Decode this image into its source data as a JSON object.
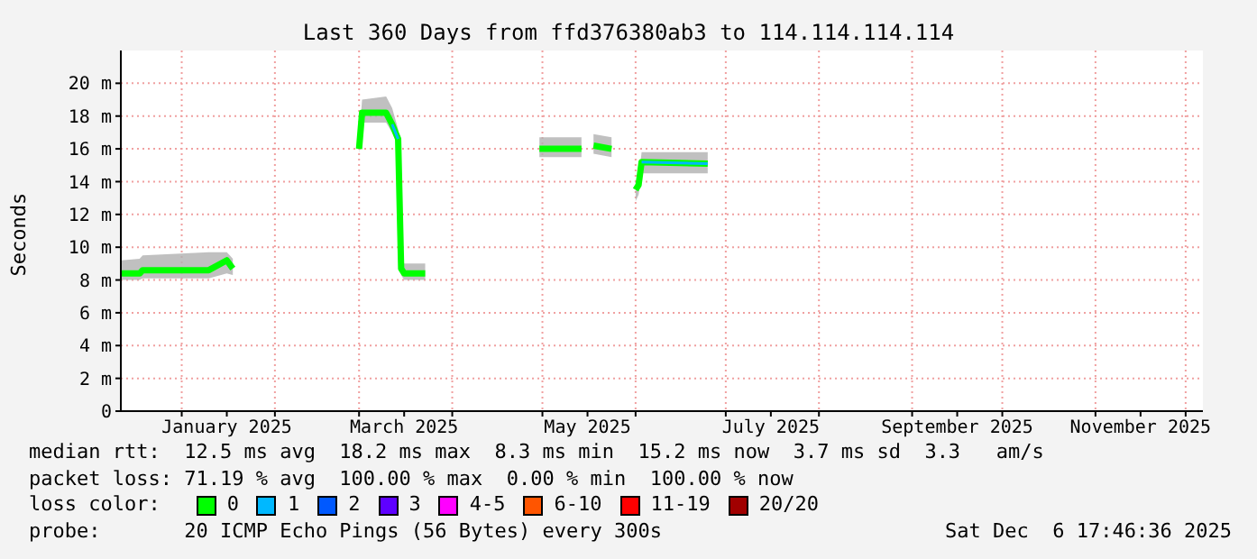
{
  "chart_data": {
    "type": "line",
    "title": "Last 360 Days from ffd376380ab3 to 114.114.114.114",
    "ylabel": "Seconds",
    "x": [
      "2024-12-12",
      "2024-12-18",
      "2024-12-19",
      "2025-01-10",
      "2025-01-16",
      "2025-01-18",
      "2025-02-05",
      "2025-03-01",
      "2025-03-02",
      "2025-03-10",
      "2025-03-12",
      "2025-03-14",
      "2025-03-15",
      "2025-03-16",
      "2025-03-23",
      "2025-04-10",
      "2025-04-30",
      "2025-05-14",
      "2025-05-16",
      "2025-05-18",
      "2025-05-24",
      "2025-05-28",
      "2025-06-01",
      "2025-06-02",
      "2025-06-03",
      "2025-06-25"
    ],
    "series": [
      {
        "name": "0",
        "color": "#00ff00",
        "values": [
          8.4,
          8.4,
          8.6,
          8.6,
          9.2,
          8.7,
          null,
          16,
          18.2,
          18.2,
          17.5,
          16.6,
          8.7,
          8.4,
          8.4,
          null,
          16,
          16,
          null,
          16.2,
          16,
          null,
          13.5,
          13.8,
          15.2,
          15.1
        ],
        "lower": [
          8,
          8,
          8.1,
          8.1,
          8.4,
          8.3,
          null,
          15.7,
          17.6,
          17.6,
          17,
          16.2,
          8.3,
          8,
          8,
          null,
          15.5,
          15.5,
          null,
          15.7,
          15.5,
          null,
          12.8,
          13.2,
          14.5,
          14.5
        ],
        "upper": [
          9.2,
          9.3,
          9.5,
          9.7,
          9.7,
          9.3,
          null,
          16.5,
          19,
          19.2,
          18.5,
          17.2,
          9.3,
          9,
          9,
          null,
          16.7,
          16.7,
          null,
          16.9,
          16.7,
          null,
          14,
          14.2,
          15.8,
          15.8
        ]
      },
      {
        "name": "1",
        "color": "#00b8ff",
        "values": [
          null,
          null,
          null,
          null,
          null,
          null,
          null,
          null,
          null,
          null,
          17.5,
          16.6,
          null,
          null,
          null,
          null,
          null,
          null,
          null,
          null,
          null,
          null,
          null,
          null,
          15.2,
          15.1
        ]
      },
      {
        "name": "2",
        "color": "#0059ff",
        "values": [
          null,
          null,
          null,
          null,
          null,
          null,
          null,
          null,
          null,
          null,
          null,
          null,
          null,
          null,
          null,
          null,
          null,
          null,
          null,
          null,
          null,
          null,
          null,
          null,
          null,
          null
        ]
      },
      {
        "name": "3",
        "color": "#5e00ff",
        "values": [
          null,
          null,
          null,
          null,
          null,
          null,
          null,
          null,
          null,
          null,
          null,
          null,
          null,
          null,
          null,
          null,
          null,
          null,
          null,
          null,
          null,
          null,
          null,
          null,
          null,
          null
        ]
      },
      {
        "name": "4-5",
        "color": "#ff00ff",
        "values": [
          null,
          null,
          null,
          null,
          null,
          null,
          null,
          null,
          null,
          null,
          null,
          null,
          null,
          null,
          null,
          null,
          null,
          null,
          null,
          null,
          null,
          null,
          null,
          null,
          null,
          null
        ]
      },
      {
        "name": "6-10",
        "color": "#ff5500",
        "values": [
          null,
          null,
          null,
          null,
          null,
          null,
          null,
          null,
          null,
          null,
          null,
          null,
          null,
          null,
          null,
          null,
          null,
          null,
          null,
          null,
          null,
          null,
          null,
          null,
          null,
          null
        ]
      },
      {
        "name": "11-19",
        "color": "#ff0000",
        "values": [
          null,
          null,
          null,
          null,
          null,
          null,
          null,
          null,
          null,
          null,
          null,
          null,
          null,
          null,
          null,
          null,
          null,
          null,
          null,
          null,
          null,
          null,
          null,
          null,
          null,
          null
        ]
      },
      {
        "name": "20/20",
        "color": "#a10000",
        "values": [
          null,
          null,
          null,
          null,
          null,
          null,
          null,
          null,
          null,
          null,
          null,
          null,
          null,
          null,
          null,
          null,
          null,
          null,
          null,
          null,
          null,
          null,
          null,
          null,
          null,
          null
        ]
      }
    ],
    "legend": "bottom",
    "legend_title": "loss color:",
    "xlim": [
      "2024-12-11T17:46",
      "2025-12-06T17:46"
    ],
    "xticks": [
      {
        "value": "2025-01-01",
        "label": null
      },
      {
        "value": "2025-01-16",
        "label": "January 2025"
      },
      {
        "value": "2025-02-01",
        "label": null
      },
      {
        "value": "2025-03-01",
        "label": null
      },
      {
        "value": "2025-03-16",
        "label": "March 2025"
      },
      {
        "value": "2025-04-01",
        "label": null
      },
      {
        "value": "2025-05-01",
        "label": null
      },
      {
        "value": "2025-05-16",
        "label": "May 2025"
      },
      {
        "value": "2025-06-01",
        "label": null
      },
      {
        "value": "2025-07-01",
        "label": null
      },
      {
        "value": "2025-07-16",
        "label": "July 2025"
      },
      {
        "value": "2025-08-01",
        "label": null
      },
      {
        "value": "2025-09-01",
        "label": null
      },
      {
        "value": "2025-09-16",
        "label": "September 2025"
      },
      {
        "value": "2025-10-01",
        "label": null
      },
      {
        "value": "2025-11-01",
        "label": null
      },
      {
        "value": "2025-11-16",
        "label": "November 2025"
      },
      {
        "value": "2025-12-01",
        "label": null
      }
    ],
    "ylim": [
      0,
      22
    ],
    "yticks": [
      0,
      {
        "value": 2,
        "label": "2 m"
      },
      {
        "value": 4,
        "label": "4 m"
      },
      {
        "value": 6,
        "label": "6 m"
      },
      {
        "value": 8,
        "label": "8 m"
      },
      {
        "value": 10,
        "label": "10 m"
      },
      {
        "value": 12,
        "label": "12 m"
      },
      {
        "value": 14,
        "label": "14 m"
      },
      {
        "value": 16,
        "label": "16 m"
      },
      {
        "value": 18,
        "label": "18 m"
      },
      {
        "value": 20,
        "label": "20 m"
      }
    ],
    "grid": true,
    "annotations": [
      "median rtt:  12.5 ms avg  18.2 ms max  8.3 ms min  15.2 ms now  3.7 ms sd  3.3   am/s",
      "packet loss: 71.19 % avg  100.00 % max  0.00 % min  100.00 % now",
      "probe:       20 ICMP Echo Pings (56 Bytes) every 300s",
      "Sat Dec  6 17:46:36 2025"
    ]
  }
}
